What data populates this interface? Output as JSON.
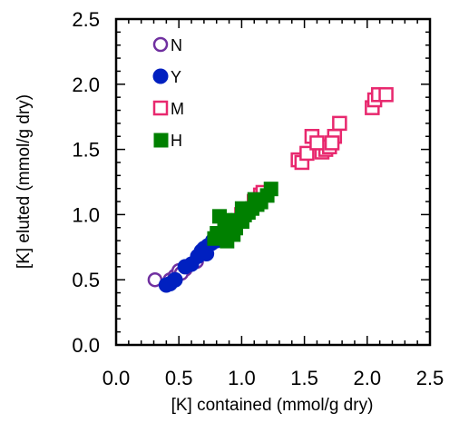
{
  "chart_data": {
    "type": "scatter",
    "xlabel": "[K] contained (mmol/g dry)",
    "ylabel": "[K] eluted (mmol/g dry)",
    "xlim": [
      0,
      2.5
    ],
    "ylim": [
      0,
      2.5
    ],
    "xticks": [
      "0.0",
      "0.5",
      "1.0",
      "1.5",
      "2.0",
      "2.5"
    ],
    "yticks": [
      "0.0",
      "0.5",
      "1.0",
      "1.5",
      "2.0",
      "2.5"
    ],
    "grid": false,
    "legend_position": "top-left",
    "series": [
      {
        "name": "N",
        "marker": "open-circle",
        "color": "#7030a0",
        "points": [
          [
            0.31,
            0.5
          ],
          [
            0.43,
            0.5
          ],
          [
            0.47,
            0.53
          ],
          [
            0.5,
            0.57
          ],
          [
            0.55,
            0.58
          ],
          [
            0.6,
            0.62
          ],
          [
            0.64,
            0.64
          ],
          [
            0.4,
            0.46
          ],
          [
            0.52,
            0.55
          ]
        ]
      },
      {
        "name": "Y",
        "marker": "filled-circle",
        "color": "#0020c0",
        "points": [
          [
            0.4,
            0.46
          ],
          [
            0.43,
            0.47
          ],
          [
            0.47,
            0.5
          ],
          [
            0.55,
            0.6
          ],
          [
            0.6,
            0.62
          ],
          [
            0.65,
            0.68
          ],
          [
            0.68,
            0.72
          ],
          [
            0.7,
            0.74
          ],
          [
            0.73,
            0.76
          ],
          [
            0.77,
            0.8
          ],
          [
            0.8,
            0.8
          ],
          [
            0.83,
            0.83
          ],
          [
            0.72,
            0.7
          ],
          [
            0.76,
            0.78
          ]
        ]
      },
      {
        "name": "M",
        "marker": "open-square",
        "color": "#e8286e",
        "points": [
          [
            0.95,
            0.92
          ],
          [
            1.0,
            1.0
          ],
          [
            1.1,
            1.1
          ],
          [
            1.15,
            1.15
          ],
          [
            1.17,
            1.17
          ],
          [
            1.45,
            1.42
          ],
          [
            1.48,
            1.4
          ],
          [
            1.52,
            1.47
          ],
          [
            1.56,
            1.6
          ],
          [
            1.64,
            1.48
          ],
          [
            1.67,
            1.5
          ],
          [
            1.7,
            1.52
          ],
          [
            1.74,
            1.6
          ],
          [
            1.78,
            1.7
          ],
          [
            2.04,
            1.82
          ],
          [
            2.06,
            1.88
          ],
          [
            2.09,
            1.92
          ],
          [
            2.15,
            1.92
          ],
          [
            1.6,
            1.55
          ],
          [
            1.72,
            1.55
          ]
        ]
      },
      {
        "name": "H",
        "marker": "filled-square",
        "color": "#008000",
        "points": [
          [
            0.78,
            0.82
          ],
          [
            0.8,
            0.86
          ],
          [
            0.82,
            0.99
          ],
          [
            0.85,
            0.85
          ],
          [
            0.87,
            0.92
          ],
          [
            0.88,
            0.8
          ],
          [
            0.9,
            0.88
          ],
          [
            0.92,
            0.93
          ],
          [
            0.95,
            0.9
          ],
          [
            0.97,
            0.96
          ],
          [
            1.0,
            0.95
          ],
          [
            1.02,
            1.0
          ],
          [
            1.05,
            1.02
          ],
          [
            1.08,
            1.05
          ],
          [
            1.12,
            1.08
          ],
          [
            1.15,
            1.1
          ],
          [
            1.2,
            1.15
          ],
          [
            1.23,
            1.2
          ],
          [
            0.86,
            0.96
          ],
          [
            0.93,
            0.85
          ],
          [
            1.0,
            1.05
          ],
          [
            1.1,
            1.12
          ]
        ]
      }
    ]
  }
}
